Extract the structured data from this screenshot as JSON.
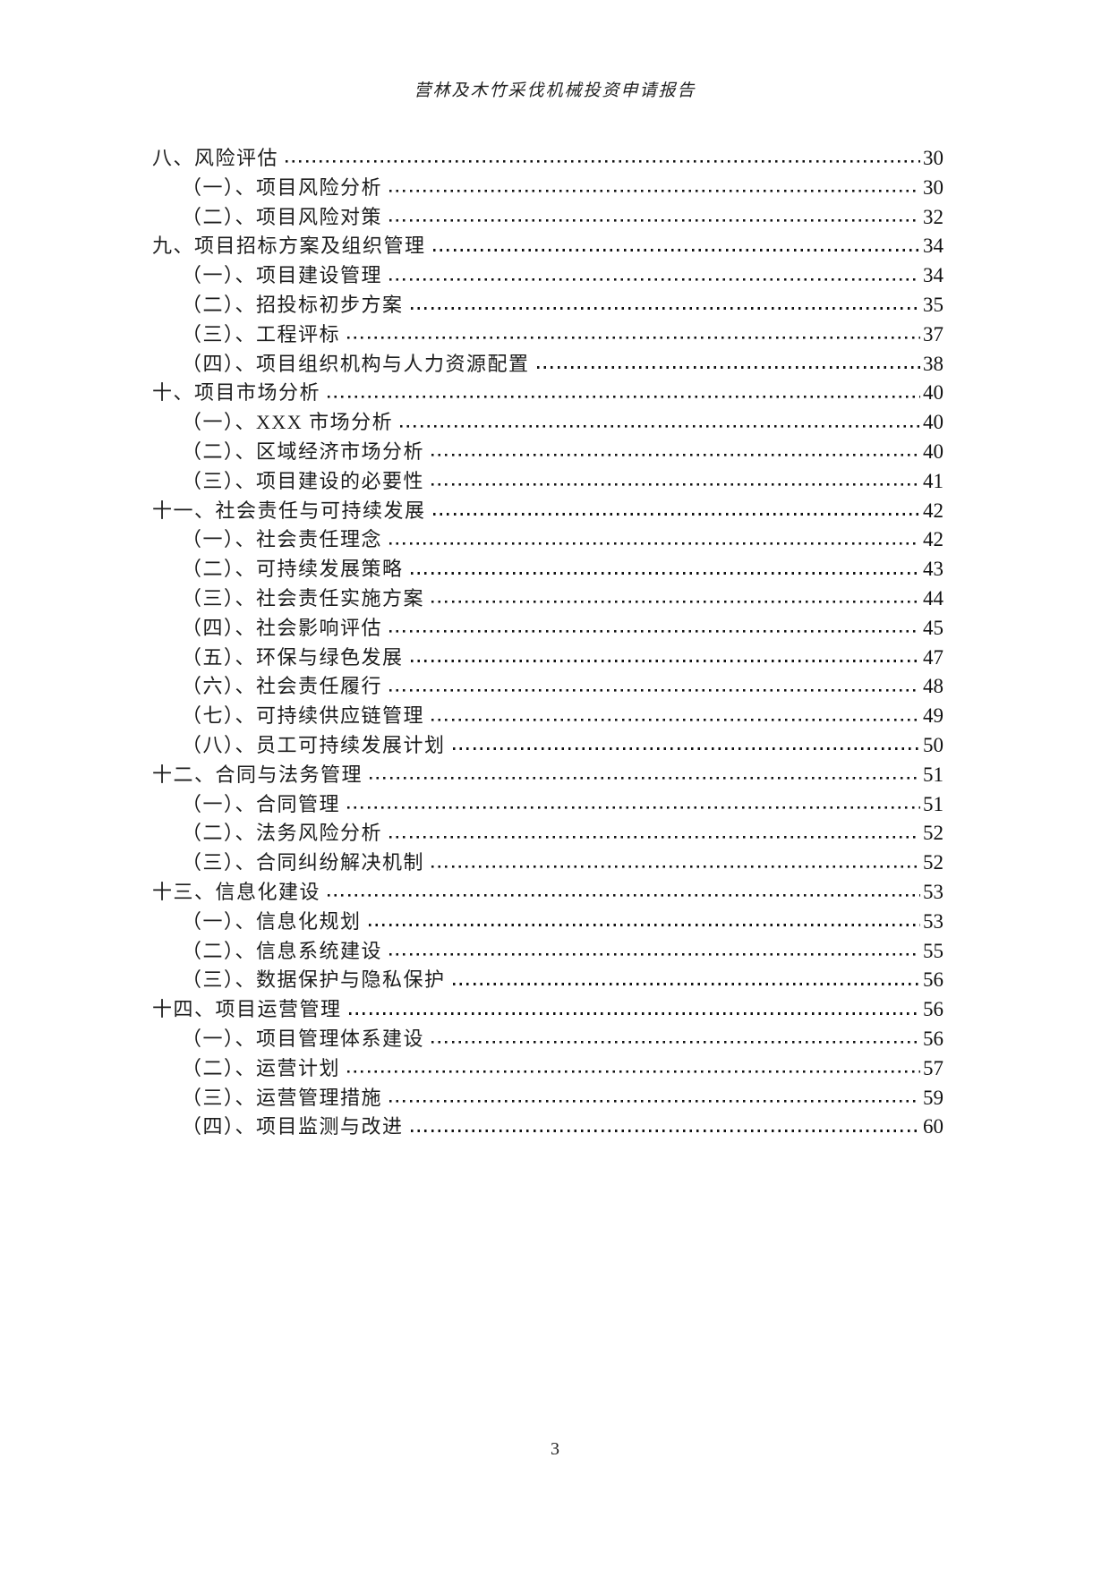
{
  "header": {
    "title": "营林及木竹采伐机械投资申请报告"
  },
  "toc": {
    "entries": [
      {
        "level": 1,
        "title": "八、风险评估",
        "page": "30"
      },
      {
        "level": 2,
        "title": "（一）、项目风险分析",
        "page": "30"
      },
      {
        "level": 2,
        "title": "（二）、项目风险对策",
        "page": "32"
      },
      {
        "level": 1,
        "title": "九、项目招标方案及组织管理",
        "page": "34"
      },
      {
        "level": 2,
        "title": "（一）、项目建设管理",
        "page": "34"
      },
      {
        "level": 2,
        "title": "（二）、招投标初步方案",
        "page": "35"
      },
      {
        "level": 2,
        "title": "（三）、工程评标",
        "page": "37"
      },
      {
        "level": 2,
        "title": "（四）、项目组织机构与人力资源配置",
        "page": "38"
      },
      {
        "level": 1,
        "title": "十、项目市场分析",
        "page": "40"
      },
      {
        "level": 2,
        "title": "（一）、XXX 市场分析",
        "page": "40"
      },
      {
        "level": 2,
        "title": "（二）、区域经济市场分析",
        "page": "40"
      },
      {
        "level": 2,
        "title": "（三）、项目建设的必要性",
        "page": "41"
      },
      {
        "level": 1,
        "title": "十一、社会责任与可持续发展",
        "page": "42"
      },
      {
        "level": 2,
        "title": "（一）、社会责任理念",
        "page": "42"
      },
      {
        "level": 2,
        "title": "（二）、可持续发展策略",
        "page": "43"
      },
      {
        "level": 2,
        "title": "（三）、社会责任实施方案",
        "page": "44"
      },
      {
        "level": 2,
        "title": "（四）、社会影响评估",
        "page": "45"
      },
      {
        "level": 2,
        "title": "（五）、环保与绿色发展",
        "page": "47"
      },
      {
        "level": 2,
        "title": "（六）、社会责任履行",
        "page": "48"
      },
      {
        "level": 2,
        "title": "（七）、可持续供应链管理",
        "page": "49"
      },
      {
        "level": 2,
        "title": "（八）、员工可持续发展计划",
        "page": "50"
      },
      {
        "level": 1,
        "title": "十二、合同与法务管理",
        "page": "51"
      },
      {
        "level": 2,
        "title": "（一）、合同管理",
        "page": "51"
      },
      {
        "level": 2,
        "title": "（二）、法务风险分析",
        "page": "52"
      },
      {
        "level": 2,
        "title": "（三）、合同纠纷解决机制",
        "page": "52"
      },
      {
        "level": 1,
        "title": "十三、信息化建设",
        "page": "53"
      },
      {
        "level": 2,
        "title": "（一）、信息化规划",
        "page": "53"
      },
      {
        "level": 2,
        "title": "（二）、信息系统建设",
        "page": "55"
      },
      {
        "level": 2,
        "title": "（三）、数据保护与隐私保护",
        "page": "56"
      },
      {
        "level": 1,
        "title": "十四、项目运营管理",
        "page": "56"
      },
      {
        "level": 2,
        "title": "（一）、项目管理体系建设",
        "page": "56"
      },
      {
        "level": 2,
        "title": "（二）、运营计划",
        "page": "57"
      },
      {
        "level": 2,
        "title": "（三）、运营管理措施",
        "page": "59"
      },
      {
        "level": 2,
        "title": "（四）、项目监测与改进",
        "page": "60"
      }
    ]
  },
  "footer": {
    "page_number": "3"
  }
}
